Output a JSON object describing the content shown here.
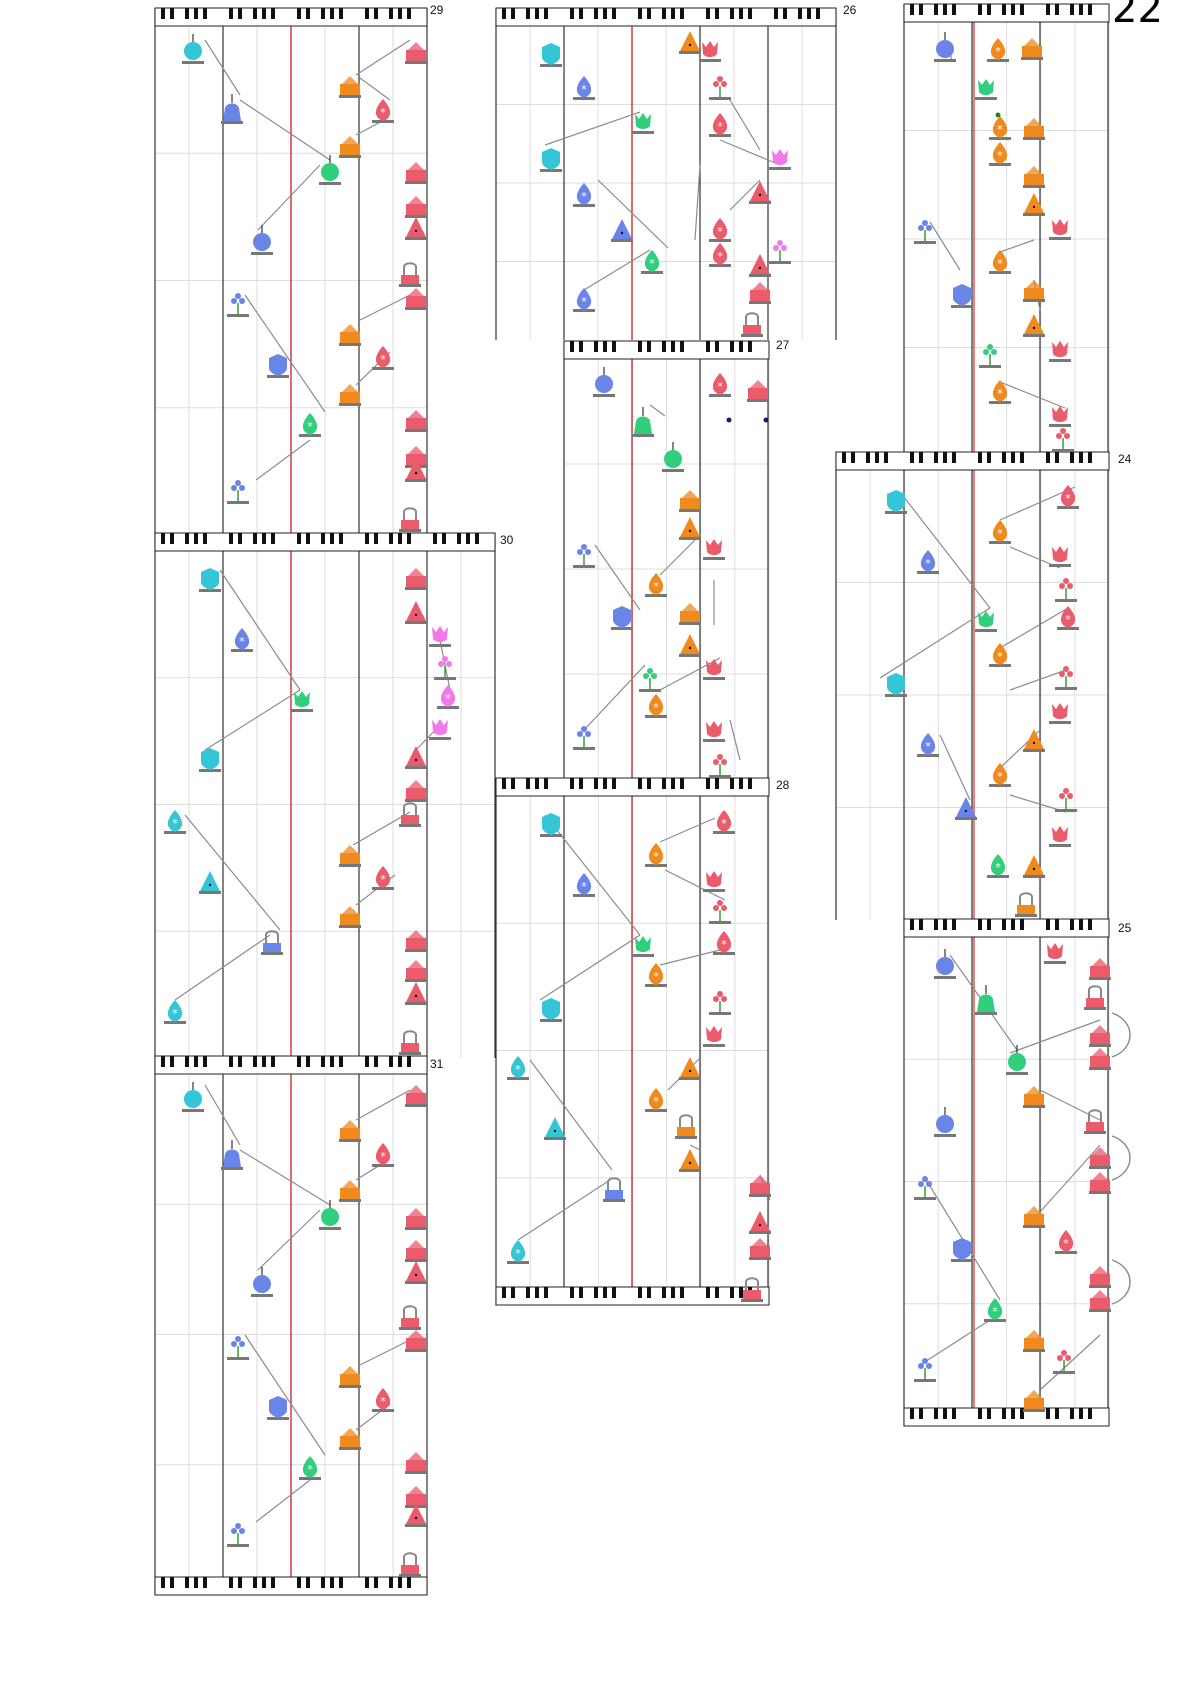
{
  "page": {
    "number": "22"
  },
  "colors": {
    "cyan": "#34c6d6",
    "blue": "#6a85e8",
    "green": "#2fcf7c",
    "red": "#ea5b6b",
    "orange": "#ef8a1e",
    "pink": "#f07ae8",
    "gray": "#8c8c8c",
    "hit_line": "#e0282e",
    "key_black": "#111111",
    "grid": "#dddddd"
  },
  "notation": {
    "icon_legend": [
      "head-icon",
      "bell-icon",
      "balloon-icon",
      "shield-icon",
      "flower-icon",
      "drop-icon",
      "pin-icon",
      "cake-icon",
      "melon-icon",
      "tulip-icon",
      "lamp-icon",
      "leaf-icon"
    ]
  },
  "measures": [
    {
      "number": "22",
      "label": ""
    },
    {
      "number": "24",
      "label": "24"
    },
    {
      "number": "25",
      "label": "25"
    },
    {
      "number": "26",
      "label": "26"
    },
    {
      "number": "27",
      "label": "27"
    },
    {
      "number": "28",
      "label": "28"
    },
    {
      "number": "29",
      "label": "29"
    },
    {
      "number": "30",
      "label": "30"
    },
    {
      "number": "31",
      "label": "31"
    }
  ]
}
